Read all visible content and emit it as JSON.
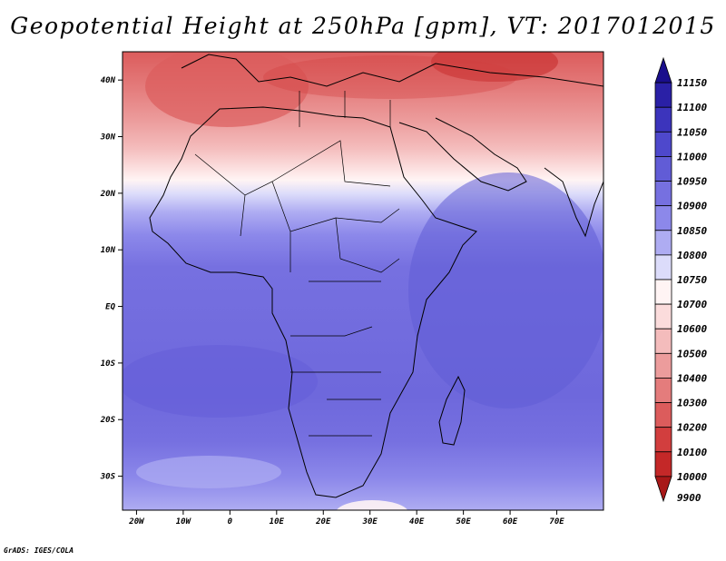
{
  "title": "Geopotential Height at 250hPa [gpm], VT: 2017012015",
  "credit": "GrADS: IGES/COLA",
  "map": {
    "region": "Africa",
    "field": "geopotential height",
    "level": "250hPa",
    "units": "gpm",
    "valid_time": "2017012015",
    "lat_range": [
      -36,
      45
    ],
    "lon_range": [
      -23,
      80
    ],
    "lat_ticks": [
      {
        "value": 40,
        "label": "40N"
      },
      {
        "value": 30,
        "label": "30N"
      },
      {
        "value": 20,
        "label": "20N"
      },
      {
        "value": 10,
        "label": "10N"
      },
      {
        "value": 0,
        "label": "EQ"
      },
      {
        "value": -10,
        "label": "10S"
      },
      {
        "value": -20,
        "label": "20S"
      },
      {
        "value": -30,
        "label": "30S"
      }
    ],
    "lon_ticks": [
      {
        "value": -20,
        "label": "20W"
      },
      {
        "value": -10,
        "label": "10W"
      },
      {
        "value": 0,
        "label": "0"
      },
      {
        "value": 10,
        "label": "10E"
      },
      {
        "value": 20,
        "label": "20E"
      },
      {
        "value": 30,
        "label": "30E"
      },
      {
        "value": 40,
        "label": "40E"
      },
      {
        "value": 50,
        "label": "50E"
      },
      {
        "value": 60,
        "label": "60E"
      },
      {
        "value": 70,
        "label": "70E"
      }
    ]
  },
  "colorbar": {
    "levels": [
      {
        "label": "11150",
        "color": "#1a0e8c"
      },
      {
        "label": "11100",
        "color": "#2a20a6"
      },
      {
        "label": "11050",
        "color": "#3c34bc"
      },
      {
        "label": "11000",
        "color": "#4e48cc"
      },
      {
        "label": "10950",
        "color": "#615cd6"
      },
      {
        "label": "10900",
        "color": "#7670e0"
      },
      {
        "label": "10850",
        "color": "#8c88ea"
      },
      {
        "label": "10800",
        "color": "#aeacf2"
      },
      {
        "label": "10750",
        "color": "#dcdcfa"
      },
      {
        "label": "10700",
        "color": "#fff4f4"
      },
      {
        "label": "10600",
        "color": "#fbdcdc"
      },
      {
        "label": "10500",
        "color": "#f4bcbc"
      },
      {
        "label": "10400",
        "color": "#ec9c9c"
      },
      {
        "label": "10300",
        "color": "#e47c7c"
      },
      {
        "label": "10200",
        "color": "#dc5c5c"
      },
      {
        "label": "10100",
        "color": "#d23e3e"
      },
      {
        "label": "10000",
        "color": "#c42828"
      },
      {
        "label": "9900",
        "color": "#a81818"
      }
    ]
  }
}
